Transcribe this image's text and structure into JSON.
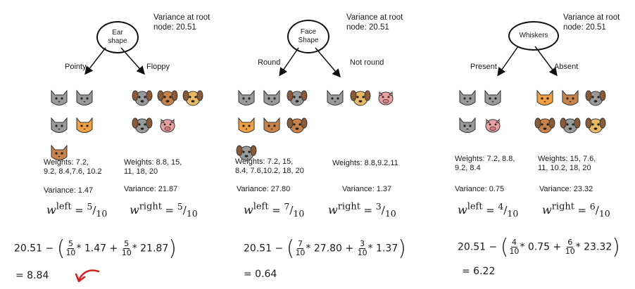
{
  "panels": [
    {
      "root_label": "Ear shape",
      "variance_root": "Variance at root\nnode: 20.51",
      "left_branch": "Pointy",
      "right_branch": "Floppy",
      "left_weights": "Weights: 7.2,\n9.2, 8.4,7.6, 10.2",
      "right_weights": "Weights: 8.8, 15,\n11, 18, 20",
      "left_variance": "Variance: 1.47",
      "right_variance": "Variance: 21.87",
      "w_left_num": "5",
      "w_left_den": "10",
      "w_right_num": "5",
      "w_right_den": "10",
      "eq_start": "20.51 −",
      "f1_num": "5",
      "f1_den": "10",
      "v1": "* 1.47 +",
      "f2_num": "5",
      "f2_den": "10",
      "v2": "* 21.87",
      "result": "= 8.84"
    },
    {
      "root_label": "Face Shape",
      "variance_root": "Variance at root\nnode: 20.51",
      "left_branch": "Round",
      "right_branch": "Not round",
      "left_weights": "Weights: 7.2, 15,\n8.4, 7.6,10.2, 18, 20",
      "right_weights": "Weights: 8.8,9.2,11",
      "left_variance": "Variance: 27.80",
      "right_variance": "Variance: 1.37",
      "w_left_num": "7",
      "w_left_den": "10",
      "w_right_num": "3",
      "w_right_den": "10",
      "eq_start": "20.51 −",
      "f1_num": "7",
      "f1_den": "10",
      "v1": "* 27.80 +",
      "f2_num": "3",
      "f2_den": "10",
      "v2": "* 1.37",
      "result": "= 0.64"
    },
    {
      "root_label": "Whiskers",
      "variance_root": "Variance at root\nnode: 20.51",
      "left_branch": "Present",
      "right_branch": "Absent",
      "left_weights": "Weights: 7.2, 8.8,\n9.2, 8.4",
      "right_weights": "Weights: 15, 7.6,\n11, 10.2, 18, 20",
      "left_variance": "Variance: 0.75",
      "right_variance": "Variance: 23.32",
      "w_left_num": "4",
      "w_left_den": "10",
      "w_right_num": "6",
      "w_right_den": "10",
      "eq_start": "20.51 −",
      "f1_num": "4",
      "f1_den": "10",
      "v1": "* 0.75 +",
      "f2_num": "6",
      "f2_den": "10",
      "v2": "* 23.32",
      "result": "= 6.22"
    }
  ],
  "w_left_label": "left",
  "w_right_label": "right",
  "colors": {
    "cat_gray": "#9a9a9a",
    "cat_orange": "#f0a040",
    "dog_brown": "#c9824a",
    "dog_tan": "#e9b964",
    "pig_pink": "#e8a0a0",
    "annotation_red": "#d11f1f"
  }
}
